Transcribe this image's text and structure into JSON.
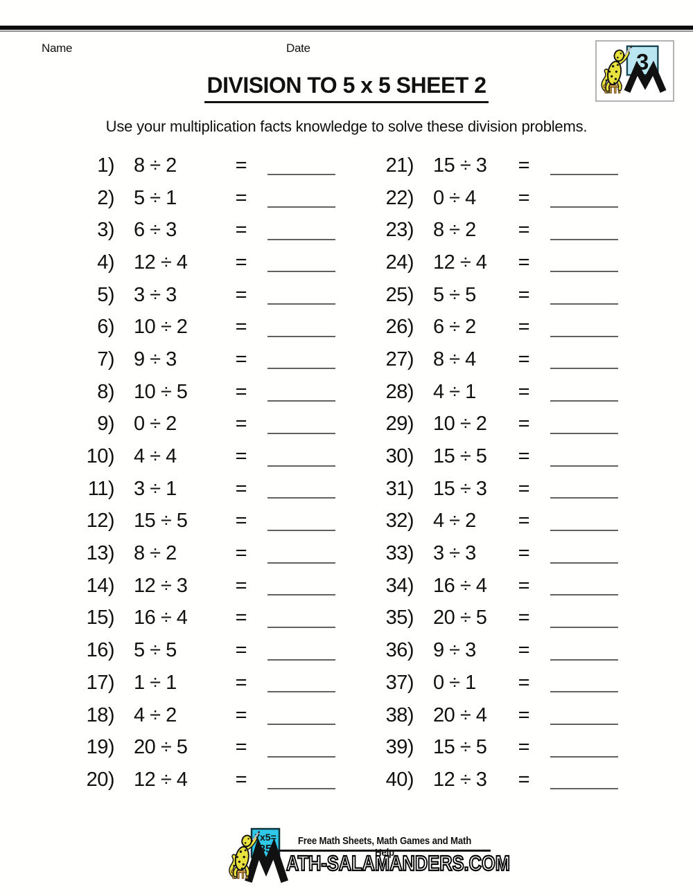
{
  "header": {
    "name_label": "Name",
    "date_label": "Date",
    "title": "DIVISION TO 5 x 5 SHEET 2",
    "instruction": "Use your multiplication facts knowledge to solve these division problems.",
    "badge_number": "3"
  },
  "worksheet": {
    "equals": "=",
    "left": [
      {
        "num": "1)",
        "expr": "8 ÷ 2"
      },
      {
        "num": "2)",
        "expr": "5 ÷ 1"
      },
      {
        "num": "3)",
        "expr": "6 ÷ 3"
      },
      {
        "num": "4)",
        "expr": "12 ÷ 4"
      },
      {
        "num": "5)",
        "expr": "3 ÷ 3"
      },
      {
        "num": "6)",
        "expr": "10 ÷ 2"
      },
      {
        "num": "7)",
        "expr": "9 ÷ 3"
      },
      {
        "num": "8)",
        "expr": "10 ÷ 5"
      },
      {
        "num": "9)",
        "expr": "0 ÷ 2"
      },
      {
        "num": "10)",
        "expr": "4 ÷ 4"
      },
      {
        "num": "11)",
        "expr": "3 ÷ 1"
      },
      {
        "num": "12)",
        "expr": "15 ÷ 5"
      },
      {
        "num": "13)",
        "expr": "8 ÷ 2"
      },
      {
        "num": "14)",
        "expr": "12 ÷ 3"
      },
      {
        "num": "15)",
        "expr": "16 ÷ 4"
      },
      {
        "num": "16)",
        "expr": "5 ÷ 5"
      },
      {
        "num": "17)",
        "expr": "1 ÷ 1"
      },
      {
        "num": "18)",
        "expr": "4 ÷ 2"
      },
      {
        "num": "19)",
        "expr": "20 ÷ 5"
      },
      {
        "num": "20)",
        "expr": "12 ÷ 4"
      }
    ],
    "right": [
      {
        "num": "21)",
        "expr": "15 ÷ 3"
      },
      {
        "num": "22)",
        "expr": "0 ÷ 4"
      },
      {
        "num": "23)",
        "expr": "8 ÷ 2"
      },
      {
        "num": "24)",
        "expr": "12 ÷ 4"
      },
      {
        "num": "25)",
        "expr": "5 ÷ 5"
      },
      {
        "num": "26)",
        "expr": "6 ÷ 2"
      },
      {
        "num": "27)",
        "expr": "8 ÷ 4"
      },
      {
        "num": "28)",
        "expr": "4 ÷ 1"
      },
      {
        "num": "29)",
        "expr": "10 ÷ 2"
      },
      {
        "num": "30)",
        "expr": "15 ÷ 5"
      },
      {
        "num": "31)",
        "expr": "15 ÷ 3"
      },
      {
        "num": "32)",
        "expr": "4 ÷ 2"
      },
      {
        "num": "33)",
        "expr": "3 ÷ 3"
      },
      {
        "num": "34)",
        "expr": "16 ÷ 4"
      },
      {
        "num": "35)",
        "expr": "20 ÷ 5"
      },
      {
        "num": "36)",
        "expr": "9 ÷ 3"
      },
      {
        "num": "37)",
        "expr": "0 ÷ 1"
      },
      {
        "num": "38)",
        "expr": "20 ÷ 4"
      },
      {
        "num": "39)",
        "expr": "15 ÷ 5"
      },
      {
        "num": "40)",
        "expr": "12 ÷ 3"
      }
    ]
  },
  "footer": {
    "board_line1": "7x5=",
    "board_line2": "35",
    "tagline": "Free Math Sheets, Math Games and Math Help",
    "site": "ATH-SALAMANDERS.COM"
  },
  "colors": {
    "card_cyan_light": "#b9e6f0",
    "card_cyan": "#2fc8e8",
    "salamander_yellow": "#e9e23c",
    "rule_black": "#0c0c0c"
  }
}
